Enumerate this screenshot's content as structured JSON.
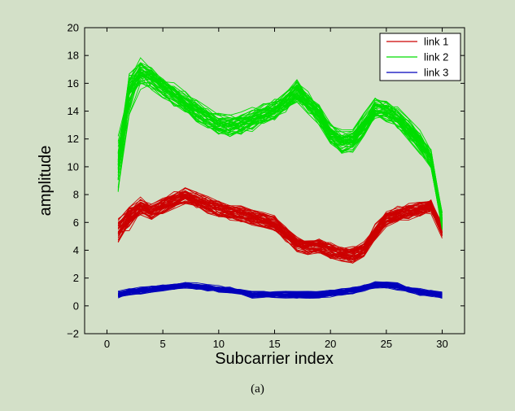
{
  "caption": "(a)",
  "chart_data": {
    "type": "line",
    "title": "",
    "xlabel": "Subcarrier index",
    "ylabel": "amplitude",
    "xlim": [
      -2,
      32
    ],
    "ylim": [
      -2,
      20
    ],
    "xticks": [
      0,
      5,
      10,
      15,
      20,
      25,
      30
    ],
    "yticks": [
      -2,
      0,
      2,
      4,
      6,
      8,
      10,
      12,
      14,
      16,
      18,
      20
    ],
    "grid": false,
    "legend_position": "top-right",
    "x": [
      1,
      2,
      3,
      4,
      5,
      6,
      7,
      8,
      9,
      10,
      11,
      12,
      13,
      14,
      15,
      16,
      17,
      18,
      19,
      20,
      21,
      22,
      23,
      24,
      25,
      26,
      27,
      28,
      29,
      30
    ],
    "series": [
      {
        "name": "link 1",
        "color": "#cc0000",
        "values": [
          6.0,
          6.8,
          7.3,
          6.8,
          7.2,
          7.6,
          7.9,
          7.6,
          7.3,
          7.0,
          6.8,
          6.6,
          6.4,
          6.2,
          5.9,
          5.2,
          4.5,
          4.3,
          4.3,
          4.0,
          3.8,
          3.7,
          4.1,
          5.3,
          6.3,
          6.6,
          6.8,
          7.0,
          7.2,
          5.5
        ]
      },
      {
        "name": "link 2",
        "color": "#00dd00",
        "values": [
          11.5,
          16.3,
          17.2,
          16.4,
          15.8,
          15.2,
          14.6,
          14.0,
          13.5,
          13.0,
          12.9,
          13.1,
          13.4,
          13.8,
          14.1,
          14.6,
          15.4,
          14.6,
          13.7,
          12.3,
          11.8,
          11.9,
          13.0,
          14.1,
          14.0,
          13.5,
          12.7,
          11.8,
          10.5,
          6.0
        ]
      },
      {
        "name": "link 3",
        "color": "#0000bb",
        "values": [
          0.8,
          1.0,
          1.1,
          1.2,
          1.3,
          1.4,
          1.5,
          1.4,
          1.3,
          1.2,
          1.1,
          1.0,
          0.8,
          0.8,
          0.8,
          0.8,
          0.8,
          0.8,
          0.8,
          0.9,
          1.0,
          1.1,
          1.3,
          1.5,
          1.5,
          1.4,
          1.2,
          1.0,
          0.9,
          0.8
        ]
      }
    ]
  }
}
